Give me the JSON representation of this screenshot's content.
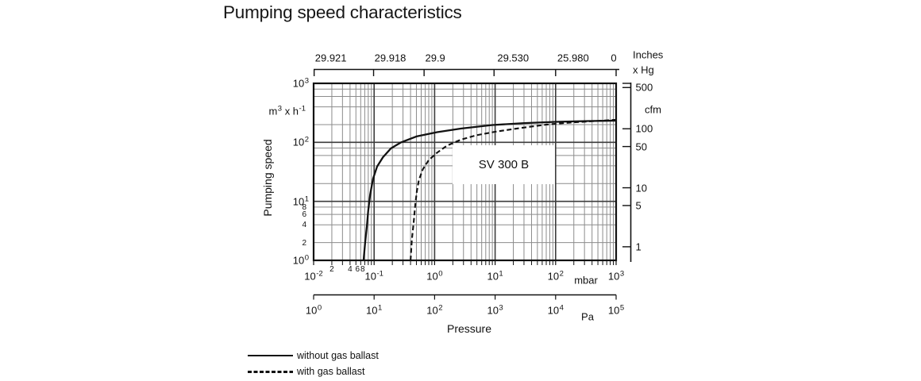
{
  "title": "Pumping speed characteristics",
  "chart_data": {
    "type": "line",
    "title": "Pumping speed characteristics",
    "annotation": "SV 300 B",
    "x_axis": {
      "label": "Pressure",
      "unit": "mbar",
      "scale": "log",
      "range_mbar": [
        0.01,
        1000
      ],
      "major_tick_exponents": [
        "-2",
        "-1",
        "0",
        "1",
        "2",
        "3"
      ],
      "minor_tick_labels": [
        "2",
        "4",
        "6",
        "8"
      ],
      "minor_tick_values": [
        0.02,
        0.04,
        0.06,
        0.08
      ],
      "grid_minor_pattern": "2-9 per decade"
    },
    "x_axis_pa": {
      "unit": "Pa",
      "scale": "log",
      "range_pa": [
        1,
        100000
      ],
      "major_tick_exponents": [
        "0",
        "1",
        "2",
        "3",
        "4",
        "5"
      ]
    },
    "top_axis": {
      "unit_line1": "Inches",
      "unit_line2": "x Hg",
      "ticks": [
        {
          "label": "29.921",
          "at_mbar": 0.0102
        },
        {
          "label": "29.918",
          "at_mbar": 0.098
        },
        {
          "label": "29.9",
          "at_mbar": 0.67
        },
        {
          "label": "29.530",
          "at_mbar": 9.6
        },
        {
          "label": "25.980",
          "at_mbar": 100
        },
        {
          "label": "0",
          "at_mbar": 1000
        }
      ]
    },
    "y_axis": {
      "label": "Pumping speed",
      "unit_parts": [
        {
          "t": "m"
        },
        {
          "t": "3",
          "sup": true
        },
        {
          "t": " x h"
        },
        {
          "t": "-1",
          "sup": true
        }
      ],
      "scale": "log",
      "range_m3h": [
        1,
        1000
      ],
      "major_tick_exponents": [
        "3",
        "2",
        "1",
        "0"
      ],
      "minor_tick_labels": [
        "8",
        "6",
        "4",
        "2"
      ],
      "minor_tick_values": [
        8,
        6,
        4,
        2
      ],
      "grid_minor_pattern": "2,4,6,8 per decade"
    },
    "y_axis_cfm": {
      "unit": "cfm",
      "ticks": [
        "500",
        "100",
        "50",
        "10",
        "5",
        "1"
      ],
      "tick_values": [
        500,
        100,
        50,
        10,
        5,
        1
      ],
      "m3h_per_cfm": 1.699
    },
    "series": [
      {
        "name": "without gas ballast",
        "style": "solid",
        "points_mbar_m3h": [
          [
            0.067,
            1
          ],
          [
            0.071,
            2
          ],
          [
            0.076,
            3.8
          ],
          [
            0.08,
            7
          ],
          [
            0.086,
            13
          ],
          [
            0.096,
            24
          ],
          [
            0.112,
            39
          ],
          [
            0.14,
            56
          ],
          [
            0.19,
            79
          ],
          [
            0.28,
            100
          ],
          [
            0.5,
            126
          ],
          [
            1.1,
            149
          ],
          [
            2.7,
            171
          ],
          [
            9,
            197
          ],
          [
            30,
            212
          ],
          [
            100,
            223
          ],
          [
            340,
            230
          ],
          [
            1000,
            233
          ]
        ]
      },
      {
        "name": "with gas ballast",
        "style": "dashed",
        "points_mbar_m3h": [
          [
            0.4,
            1
          ],
          [
            0.42,
            2.2
          ],
          [
            0.45,
            4.4
          ],
          [
            0.48,
            9
          ],
          [
            0.51,
            15
          ],
          [
            0.55,
            23
          ],
          [
            0.64,
            35
          ],
          [
            0.8,
            50
          ],
          [
            1.1,
            67
          ],
          [
            1.6,
            88
          ],
          [
            2.7,
            111
          ],
          [
            4.9,
            132
          ],
          [
            10,
            151
          ],
          [
            26,
            175
          ],
          [
            74,
            201
          ],
          [
            183,
            217
          ],
          [
            450,
            230
          ],
          [
            1000,
            241
          ]
        ]
      }
    ],
    "colors": {
      "curve": "#111111",
      "major_grid": "#3d3d3d",
      "minor_grid": "#8c8c8c",
      "border": "#111111",
      "text": "#111111"
    },
    "legend_position": "bottom-left",
    "grid": true
  },
  "legend": [
    {
      "label": "without gas ballast",
      "style": "solid"
    },
    {
      "label": "with gas ballast",
      "style": "dashed"
    }
  ]
}
